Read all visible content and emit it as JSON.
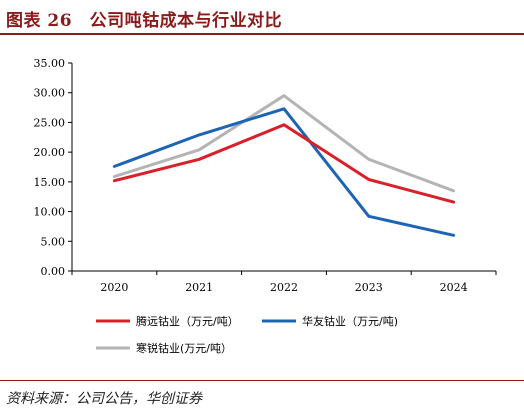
{
  "header": {
    "title": "图表 26　公司吨钴成本与行业对比"
  },
  "source": "资料来源：公司公告，华创证券",
  "chart_data": {
    "type": "line",
    "title": "",
    "xlabel": "",
    "ylabel": "",
    "categories": [
      "2020",
      "2021",
      "2022",
      "2023",
      "2024"
    ],
    "ylim": [
      0,
      35
    ],
    "yticks": [
      "0.00",
      "5.00",
      "10.00",
      "15.00",
      "20.00",
      "25.00",
      "30.00",
      "35.00"
    ],
    "grid": false,
    "legend_position": "bottom",
    "series": [
      {
        "name": "腾远钴业（万元/吨）",
        "color": "#d9202a",
        "values": [
          15.2,
          18.8,
          24.6,
          15.4,
          11.6
        ]
      },
      {
        "name": "华友钴业（万元/吨)",
        "color": "#1e64b4",
        "values": [
          17.6,
          22.9,
          27.3,
          9.2,
          6.0
        ]
      },
      {
        "name": "寒锐钴业(万元/吨）",
        "color": "#b4b4b4",
        "values": [
          15.9,
          20.4,
          29.5,
          18.8,
          13.5
        ]
      }
    ]
  }
}
